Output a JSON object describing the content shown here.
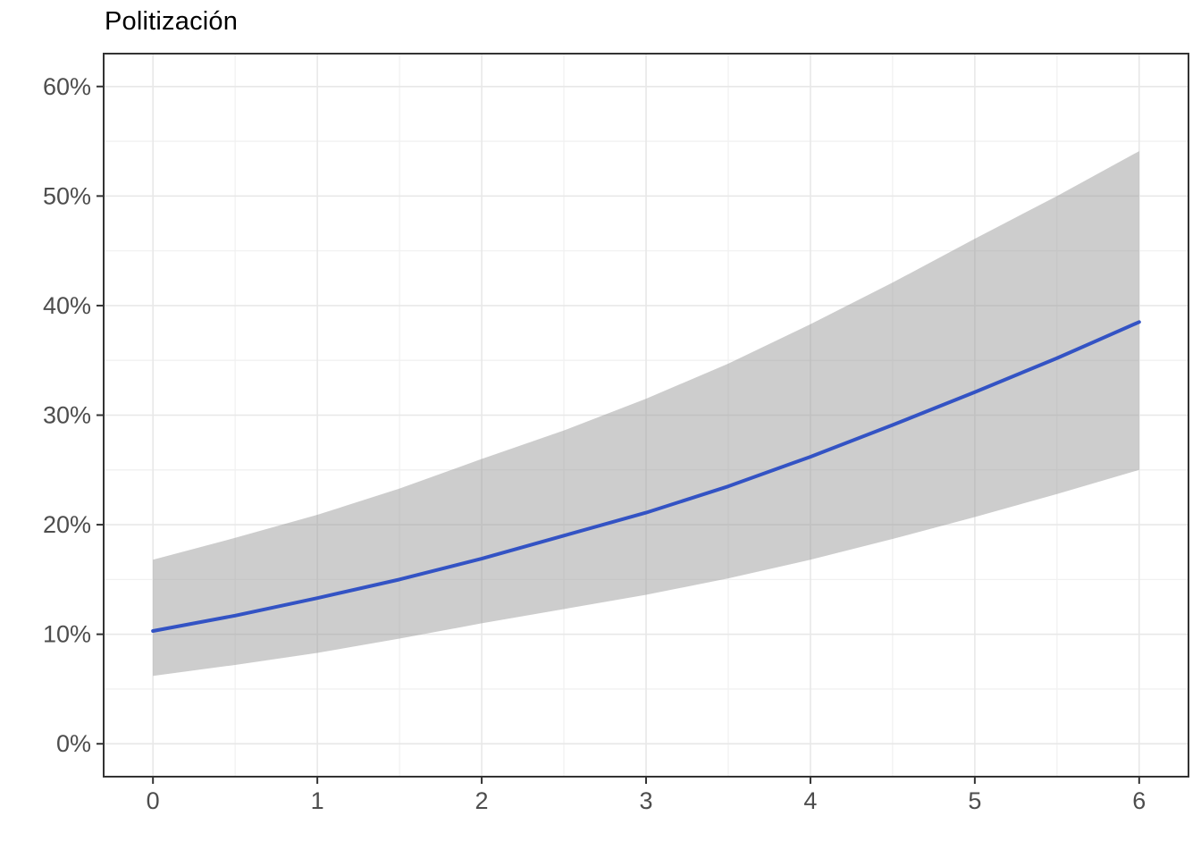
{
  "chart_data": {
    "type": "line",
    "title": "Politización",
    "xlabel": "",
    "ylabel": "",
    "legend": "none",
    "grid": true,
    "xlim": [
      -0.3,
      6.3
    ],
    "ylim_pct": [
      -3,
      63
    ],
    "x_ticks": [
      0,
      1,
      2,
      3,
      4,
      5,
      6
    ],
    "x_tick_labels": [
      "0",
      "1",
      "2",
      "3",
      "4",
      "5",
      "6"
    ],
    "x_minor": [
      -0.5,
      0.5,
      1.5,
      2.5,
      3.5,
      4.5,
      5.5
    ],
    "y_ticks_pct": [
      0,
      10,
      20,
      30,
      40,
      50,
      60
    ],
    "y_tick_labels": [
      "0%",
      "10%",
      "20%",
      "30%",
      "40%",
      "50%",
      "60%"
    ],
    "y_minor_pct": [
      5,
      15,
      25,
      35,
      45,
      55
    ],
    "x": [
      0,
      0.5,
      1,
      1.5,
      2,
      2.5,
      3,
      3.5,
      4,
      4.5,
      5,
      5.5,
      6
    ],
    "series": [
      {
        "name": "fitted-probability",
        "role": "line",
        "values_pct": [
          10.3,
          11.7,
          13.3,
          15.0,
          16.9,
          19.0,
          21.1,
          23.5,
          26.2,
          29.1,
          32.1,
          35.2,
          38.5
        ]
      },
      {
        "name": "ci-lower",
        "role": "band-lower",
        "values_pct": [
          6.2,
          7.2,
          8.3,
          9.6,
          11.0,
          12.3,
          13.6,
          15.1,
          16.8,
          18.7,
          20.7,
          22.8,
          25.0
        ]
      },
      {
        "name": "ci-upper",
        "role": "band-upper",
        "values_pct": [
          16.8,
          18.8,
          20.9,
          23.3,
          26.0,
          28.6,
          31.5,
          34.7,
          38.3,
          42.1,
          46.1,
          50.0,
          54.1
        ]
      }
    ],
    "colors": {
      "line": "#3353c4",
      "band": "#999999",
      "band_opacity": 0.49,
      "grid_major": "#e8e8e8",
      "grid_minor": "#f1f1f1",
      "panel_border": "#333333",
      "tick_mark": "#333333",
      "axis_text": "#4d4d4d",
      "title_text": "#000000",
      "panel_background": "#ffffff"
    }
  }
}
